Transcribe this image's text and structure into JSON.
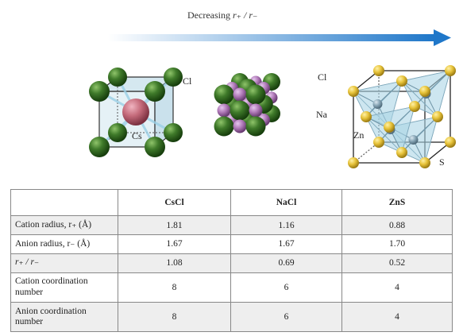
{
  "header": {
    "arrow_label_prefix": "Decreasing ",
    "arrow_label_ratio": "r₊ / r₋",
    "arrow_color_start": "#ffffff",
    "arrow_color_end": "#1f77c9"
  },
  "structures": [
    {
      "name": "CsCl",
      "labels": {
        "anion": "Cl",
        "cation": "Cs"
      }
    },
    {
      "name": "NaCl",
      "labels": {
        "anion": "Cl",
        "cation": "Na"
      }
    },
    {
      "name": "ZnS",
      "labels": {
        "cation": "Zn",
        "anion": "S"
      }
    }
  ],
  "colors": {
    "chloride": "#3f7a2a",
    "cesium": "#c46a7a",
    "sodium": "#b07ab8",
    "sulfur": "#e7c33a",
    "zinc": "#8aa8b8",
    "polyhedron": "#a9d3e6"
  },
  "table": {
    "columns": [
      "",
      "CsCl",
      "NaCl",
      "ZnS"
    ],
    "rows": [
      {
        "label": "Cation radius, r₊ (Å)",
        "values": [
          "1.81",
          "1.16",
          "0.88"
        ]
      },
      {
        "label": "Anion radius, r₋ (Å)",
        "values": [
          "1.67",
          "1.67",
          "1.70"
        ]
      },
      {
        "label": "r₊ / r₋",
        "values": [
          "1.08",
          "0.69",
          "0.52"
        ]
      },
      {
        "label": "Cation coordination number",
        "values": [
          "8",
          "6",
          "4"
        ]
      },
      {
        "label": "Anion coordination number",
        "values": [
          "8",
          "6",
          "4"
        ]
      }
    ]
  }
}
